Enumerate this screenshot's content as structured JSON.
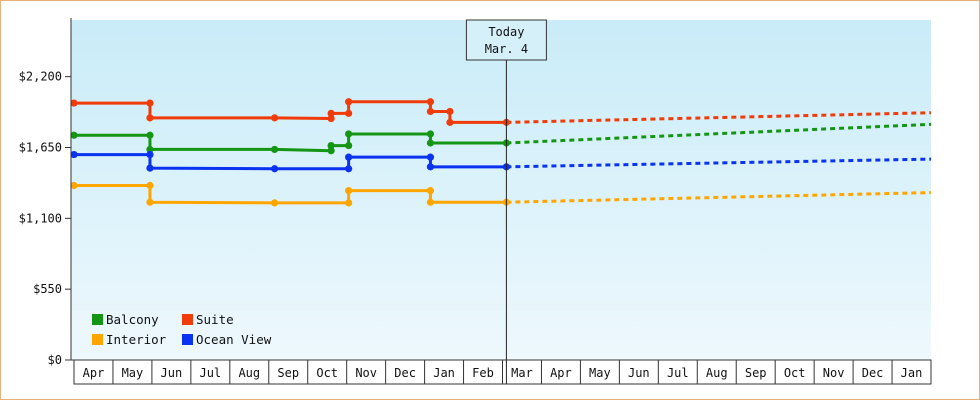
{
  "chart_data": {
    "type": "line",
    "title": "",
    "xlabel": "",
    "ylabel": "",
    "ylim": [
      0,
      2640
    ],
    "yticks": [
      {
        "value": 0,
        "label": "$0"
      },
      {
        "value": 550,
        "label": "$550"
      },
      {
        "value": 1100,
        "label": "$1,100"
      },
      {
        "value": 1650,
        "label": "$1,650"
      },
      {
        "value": 2200,
        "label": "$2,200"
      }
    ],
    "month_labels": [
      "Apr",
      "May",
      "Jun",
      "Jul",
      "Aug",
      "Sep",
      "Oct",
      "Nov",
      "Dec",
      "Jan",
      "Feb",
      "Mar",
      "Apr",
      "May",
      "Jun",
      "Jul",
      "Aug",
      "Sep",
      "Oct",
      "Nov",
      "Dec",
      "Jan"
    ],
    "x_range": [
      0,
      22
    ],
    "today": {
      "line1": "Today",
      "line2": "Mar. 4",
      "x": 11.1
    },
    "legend": {
      "placement": "bottom-left"
    },
    "grid": false,
    "series": [
      {
        "name": "Balcony",
        "color": "#149614",
        "actual": [
          [
            0.0,
            1745
          ],
          [
            1.95,
            1745
          ],
          [
            1.95,
            1635
          ],
          [
            5.15,
            1635
          ],
          [
            6.6,
            1625
          ],
          [
            6.6,
            1665
          ],
          [
            7.05,
            1665
          ],
          [
            7.05,
            1755
          ],
          [
            9.15,
            1755
          ],
          [
            9.15,
            1685
          ],
          [
            11.1,
            1685
          ]
        ],
        "forecast": [
          [
            11.1,
            1685
          ],
          [
            22.0,
            1830
          ]
        ]
      },
      {
        "name": "Suite",
        "color": "#f03c0a",
        "actual": [
          [
            0.0,
            1995
          ],
          [
            1.95,
            1995
          ],
          [
            1.95,
            1880
          ],
          [
            5.15,
            1880
          ],
          [
            6.6,
            1875
          ],
          [
            6.6,
            1915
          ],
          [
            7.05,
            1915
          ],
          [
            7.05,
            2005
          ],
          [
            9.15,
            2005
          ],
          [
            9.15,
            1930
          ],
          [
            9.65,
            1930
          ],
          [
            9.65,
            1845
          ],
          [
            11.1,
            1845
          ]
        ],
        "forecast": [
          [
            11.1,
            1845
          ],
          [
            22.0,
            1920
          ]
        ]
      },
      {
        "name": "Interior",
        "color": "#ffa500",
        "actual": [
          [
            0.0,
            1355
          ],
          [
            1.95,
            1355
          ],
          [
            1.95,
            1225
          ],
          [
            5.15,
            1220
          ],
          [
            7.05,
            1220
          ],
          [
            7.05,
            1315
          ],
          [
            9.15,
            1315
          ],
          [
            9.15,
            1225
          ],
          [
            11.1,
            1225
          ]
        ],
        "forecast": [
          [
            11.1,
            1225
          ],
          [
            22.0,
            1300
          ]
        ]
      },
      {
        "name": "Ocean View",
        "color": "#0a32f0",
        "actual": [
          [
            0.0,
            1595
          ],
          [
            1.95,
            1595
          ],
          [
            1.95,
            1490
          ],
          [
            5.15,
            1485
          ],
          [
            7.05,
            1485
          ],
          [
            7.05,
            1575
          ],
          [
            9.15,
            1575
          ],
          [
            9.15,
            1500
          ],
          [
            11.1,
            1500
          ]
        ],
        "forecast": [
          [
            11.1,
            1500
          ],
          [
            22.0,
            1560
          ]
        ]
      }
    ]
  }
}
